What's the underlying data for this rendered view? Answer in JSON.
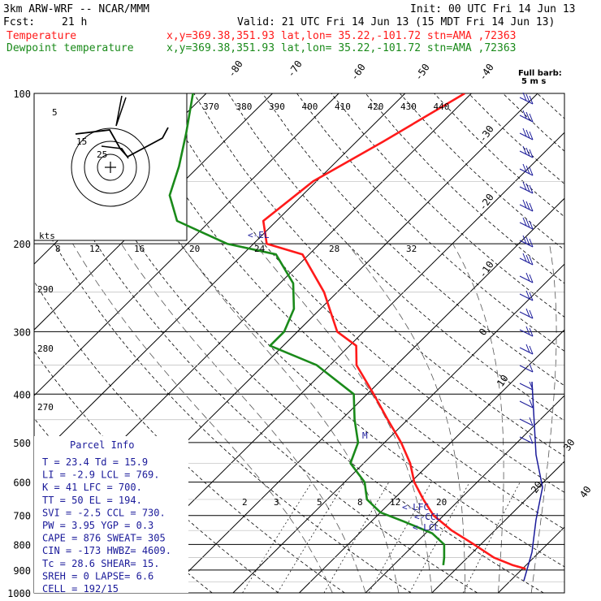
{
  "header": {
    "model": "3km ARW-WRF -- NCAR/MMM",
    "init": "Init: 00 UTC Fri 14 Jun 13",
    "fcst_label": "Fcst:",
    "fcst_hours": "21 h",
    "valid": "Valid: 21 UTC Fri 14 Jun 13 (15 MDT Fri 14 Jun 13)",
    "temp_label": "Temperature",
    "dew_label": "Dewpoint temperature",
    "location": "x,y=369.38,351.93   lat,lon= 35.22,-101.72  stn=AMA ,72363"
  },
  "colors": {
    "temperature": "#ff1a1a",
    "dewpoint": "#1a8a1a",
    "info": "#1a1a9a",
    "grid": "#000000"
  },
  "chart_data": {
    "type": "line",
    "title": "",
    "y_axis": "Pressure (hPa), log scale",
    "ylim": [
      1000,
      100
    ],
    "xlim_temp_at_1000hPa": [
      -40,
      40
    ],
    "pressure_levels": [
      100,
      200,
      300,
      400,
      500,
      600,
      700,
      800,
      900,
      1000
    ],
    "isotherm_labels": [
      -80,
      -70,
      -60,
      -50,
      -40,
      -30,
      -20,
      -10,
      0,
      10,
      20,
      30,
      40
    ],
    "theta_labels": [
      370,
      380,
      390,
      400,
      410,
      420,
      430,
      440
    ],
    "theta_e_labels": [
      290,
      280,
      270
    ],
    "mixing_ratio_labels": [
      2,
      3,
      5,
      8,
      12,
      20
    ],
    "wind_speed_labels": [
      "8",
      "12",
      "16",
      "20",
      "24",
      "28",
      "32"
    ],
    "hodograph_labels": [
      "kts",
      "5",
      "15",
      "25"
    ],
    "annotations": [
      "<-EL",
      "M",
      "<-LFC",
      "<-CCL",
      "<-LCL"
    ],
    "wind_barb_legend": [
      "Full barb:",
      "5 m s"
    ],
    "series": [
      {
        "name": "Temperature",
        "p": [
          895,
          880,
          850,
          800,
          750,
          700,
          650,
          600,
          550,
          500,
          450,
          400,
          350,
          320,
          300,
          250,
          210,
          200,
          180,
          150,
          125,
          100
        ],
        "t": [
          30.5,
          28.0,
          24.0,
          19.0,
          13.5,
          8.5,
          4.5,
          0.5,
          -3.0,
          -7.5,
          -13.0,
          -19.0,
          -26.0,
          -29.0,
          -34.0,
          -42.0,
          -51.0,
          -58.0,
          -62.0,
          -60.5,
          -56.0,
          -51.0
        ]
      },
      {
        "name": "Dewpoint temperature",
        "p": [
          880,
          850,
          800,
          760,
          720,
          690,
          650,
          600,
          550,
          500,
          450,
          400,
          350,
          320,
          300,
          270,
          240,
          210,
          200,
          180,
          160,
          140,
          120,
          100
        ],
        "t": [
          17.5,
          16.5,
          14.5,
          11.0,
          5.0,
          0.0,
          -4.0,
          -7.0,
          -12.0,
          -14.0,
          -18.0,
          -22.0,
          -32.0,
          -42.0,
          -42.0,
          -44.0,
          -48.0,
          -55.0,
          -64.0,
          -75.0,
          -80.0,
          -83.0,
          -87.0,
          -92.0
        ]
      }
    ]
  },
  "parcel_info": {
    "title": "Parcel Info",
    "rows": [
      "T  =   23.4  Td =  15.9",
      "LI =   -2.9  LCL =  769.",
      "K  =     41  LFC =  700.",
      "TT =     50  EL  =  194.",
      "SVI =  -2.5  CCL =  730.",
      "PW =   3.95  YGP =   0.3",
      "CAPE =  876  SWEAT=  305",
      "CIN =  -173  HWBZ= 4609.",
      "Tc =   28.6  SHEAR=  15.",
      "SREH =    0  LAPSE=  6.6",
      "CELL = 192/15"
    ]
  }
}
